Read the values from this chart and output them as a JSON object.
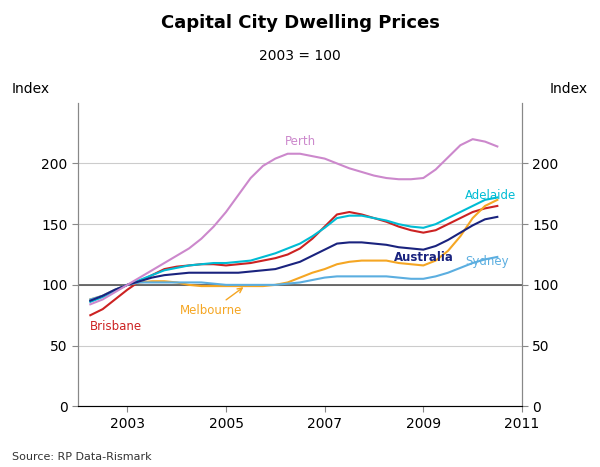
{
  "title": "Capital City Dwelling Prices",
  "subtitle": "2003 = 100",
  "ylabel_left": "Index",
  "ylabel_right": "Index",
  "source": "Source: RP Data-Rismark",
  "ylim": [
    0,
    250
  ],
  "yticks": [
    0,
    50,
    100,
    150,
    200
  ],
  "background_color": "#ffffff",
  "series": {
    "Brisbane": {
      "color": "#cc2222",
      "x": [
        2002.25,
        2002.5,
        2002.75,
        2003.0,
        2003.25,
        2003.5,
        2003.75,
        2004.0,
        2004.25,
        2004.5,
        2004.75,
        2005.0,
        2005.25,
        2005.5,
        2005.75,
        2006.0,
        2006.25,
        2006.5,
        2006.75,
        2007.0,
        2007.25,
        2007.5,
        2007.75,
        2008.0,
        2008.25,
        2008.5,
        2008.75,
        2009.0,
        2009.25,
        2009.5,
        2009.75,
        2010.0,
        2010.25,
        2010.5
      ],
      "y": [
        75,
        80,
        88,
        96,
        103,
        108,
        113,
        115,
        116,
        117,
        117,
        116,
        117,
        118,
        120,
        122,
        125,
        130,
        138,
        148,
        158,
        160,
        158,
        155,
        152,
        148,
        145,
        143,
        145,
        150,
        155,
        160,
        163,
        165
      ]
    },
    "Melbourne": {
      "color": "#f5a623",
      "x": [
        2002.25,
        2002.5,
        2002.75,
        2003.0,
        2003.25,
        2003.5,
        2003.75,
        2004.0,
        2004.25,
        2004.5,
        2004.75,
        2005.0,
        2005.25,
        2005.5,
        2005.75,
        2006.0,
        2006.25,
        2006.5,
        2006.75,
        2007.0,
        2007.25,
        2007.5,
        2007.75,
        2008.0,
        2008.25,
        2008.5,
        2008.75,
        2009.0,
        2009.25,
        2009.5,
        2009.75,
        2010.0,
        2010.25,
        2010.5
      ],
      "y": [
        88,
        91,
        96,
        100,
        102,
        103,
        103,
        102,
        100,
        99,
        99,
        99,
        99,
        99,
        99,
        100,
        102,
        106,
        110,
        113,
        117,
        119,
        120,
        120,
        120,
        118,
        117,
        116,
        120,
        128,
        140,
        155,
        165,
        170
      ]
    },
    "Adelaide": {
      "color": "#00bcd4",
      "x": [
        2002.25,
        2002.5,
        2002.75,
        2003.0,
        2003.25,
        2003.5,
        2003.75,
        2004.0,
        2004.25,
        2004.5,
        2004.75,
        2005.0,
        2005.25,
        2005.5,
        2005.75,
        2006.0,
        2006.25,
        2006.5,
        2006.75,
        2007.0,
        2007.25,
        2007.5,
        2007.75,
        2008.0,
        2008.25,
        2008.5,
        2008.75,
        2009.0,
        2009.25,
        2009.5,
        2009.75,
        2010.0,
        2010.25,
        2010.5
      ],
      "y": [
        86,
        90,
        95,
        100,
        104,
        108,
        112,
        114,
        116,
        117,
        118,
        118,
        119,
        120,
        123,
        126,
        130,
        134,
        140,
        147,
        155,
        157,
        157,
        155,
        153,
        150,
        148,
        147,
        150,
        155,
        160,
        165,
        170,
        172
      ]
    },
    "Sydney": {
      "color": "#5baee0",
      "x": [
        2002.25,
        2002.5,
        2002.75,
        2003.0,
        2003.25,
        2003.5,
        2003.75,
        2004.0,
        2004.25,
        2004.5,
        2004.75,
        2005.0,
        2005.25,
        2005.5,
        2005.75,
        2006.0,
        2006.25,
        2006.5,
        2006.75,
        2007.0,
        2007.25,
        2007.5,
        2007.75,
        2008.0,
        2008.25,
        2008.5,
        2008.75,
        2009.0,
        2009.25,
        2009.5,
        2009.75,
        2010.0,
        2010.25,
        2010.5
      ],
      "y": [
        88,
        91,
        96,
        100,
        102,
        102,
        102,
        102,
        102,
        102,
        101,
        100,
        100,
        100,
        100,
        100,
        101,
        102,
        104,
        106,
        107,
        107,
        107,
        107,
        107,
        106,
        105,
        105,
        107,
        110,
        114,
        118,
        121,
        123
      ]
    },
    "Australia": {
      "color": "#1a237e",
      "x": [
        2002.25,
        2002.5,
        2002.75,
        2003.0,
        2003.25,
        2003.5,
        2003.75,
        2004.0,
        2004.25,
        2004.5,
        2004.75,
        2005.0,
        2005.25,
        2005.5,
        2005.75,
        2006.0,
        2006.25,
        2006.5,
        2006.75,
        2007.0,
        2007.25,
        2007.5,
        2007.75,
        2008.0,
        2008.25,
        2008.5,
        2008.75,
        2009.0,
        2009.25,
        2009.5,
        2009.75,
        2010.0,
        2010.25,
        2010.5
      ],
      "y": [
        87,
        91,
        96,
        100,
        103,
        106,
        108,
        109,
        110,
        110,
        110,
        110,
        110,
        111,
        112,
        113,
        116,
        119,
        124,
        129,
        134,
        135,
        135,
        134,
        133,
        131,
        130,
        129,
        132,
        137,
        143,
        149,
        154,
        156
      ]
    },
    "Perth": {
      "color": "#cc88cc",
      "x": [
        2002.25,
        2002.5,
        2002.75,
        2003.0,
        2003.25,
        2003.5,
        2003.75,
        2004.0,
        2004.25,
        2004.5,
        2004.75,
        2005.0,
        2005.25,
        2005.5,
        2005.75,
        2006.0,
        2006.25,
        2006.5,
        2006.75,
        2007.0,
        2007.25,
        2007.5,
        2007.75,
        2008.0,
        2008.25,
        2008.5,
        2008.75,
        2009.0,
        2009.25,
        2009.5,
        2009.75,
        2010.0,
        2010.25,
        2010.5
      ],
      "y": [
        84,
        88,
        94,
        100,
        106,
        112,
        118,
        124,
        130,
        138,
        148,
        160,
        174,
        188,
        198,
        204,
        208,
        208,
        206,
        204,
        200,
        196,
        193,
        190,
        188,
        187,
        187,
        188,
        195,
        205,
        215,
        220,
        218,
        214
      ]
    }
  },
  "xmin": 2002.0,
  "xmax": 2010.75,
  "xticks": [
    2003,
    2005,
    2007,
    2009,
    2011
  ],
  "grid_color": "#cccccc",
  "line_width": 1.5
}
